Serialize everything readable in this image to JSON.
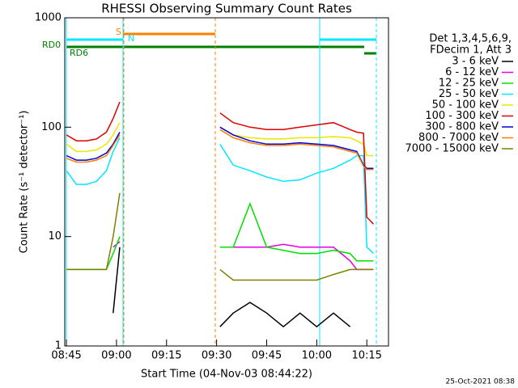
{
  "chart_data": {
    "type": "line",
    "title": "RHESSI Observing Summary Count Rates",
    "x_label": "Start Time (04-Nov-03 08:44:22)",
    "y_label": "Count Rate (s⁻¹ detector⁻¹)",
    "y_scale": "log",
    "legend_header": [
      "Det 1,3,4,5,6,9,",
      "FDecim 1, Att 3"
    ],
    "footer": "25-Oct-2021 08:38",
    "annotations": [
      "S",
      "N",
      "RD0",
      "RD6"
    ],
    "xlim": [
      524.5,
      621.5
    ],
    "ylim": [
      1,
      1000
    ],
    "xticks": [
      {
        "value": 525,
        "label": "08:45"
      },
      {
        "value": 540,
        "label": "09:00"
      },
      {
        "value": 555,
        "label": "09:15"
      },
      {
        "value": 570,
        "label": "09:30"
      },
      {
        "value": 585,
        "label": "09:45"
      },
      {
        "value": 600,
        "label": "10:00"
      },
      {
        "value": 615,
        "label": "10:15"
      }
    ],
    "yticks": [
      1,
      10,
      100,
      1000
    ],
    "x": [
      525,
      528,
      531,
      534,
      537,
      539,
      541,
      556,
      571,
      575,
      580,
      585,
      590,
      595,
      600,
      605,
      610,
      612,
      614,
      615,
      616,
      617
    ],
    "series": [
      {
        "name": "3 - 6 keV",
        "color": "#000000",
        "values": [
          null,
          null,
          null,
          null,
          null,
          2,
          8,
          null,
          1.5,
          2,
          2.5,
          2,
          1.5,
          2,
          1.5,
          2,
          1.5,
          null,
          null,
          null,
          null,
          null
        ]
      },
      {
        "name": "6 - 12 keV",
        "color": "#e000e0",
        "values": [
          null,
          null,
          null,
          null,
          null,
          8,
          9,
          null,
          8,
          8,
          8,
          8,
          8.5,
          8,
          8,
          8,
          6,
          5,
          5,
          5,
          5,
          5
        ]
      },
      {
        "name": "12 - 25 keV",
        "color": "#00e000",
        "values": [
          5,
          5,
          5,
          5,
          5,
          7,
          10,
          null,
          8,
          8,
          20,
          8,
          7.5,
          7,
          7,
          7.5,
          7,
          6,
          6,
          6,
          6,
          6
        ]
      },
      {
        "name": "25 - 50 keV",
        "color": "#00e8ff",
        "values": [
          40,
          30,
          30,
          32,
          40,
          60,
          80,
          null,
          70,
          45,
          40,
          35,
          32,
          33,
          38,
          42,
          50,
          55,
          55,
          8,
          7.5,
          7
        ]
      },
      {
        "name": "50 - 100 keV",
        "color": "#e8e800",
        "values": [
          70,
          60,
          60,
          62,
          70,
          85,
          110,
          null,
          100,
          85,
          80,
          78,
          78,
          80,
          80,
          82,
          80,
          75,
          70,
          55,
          55,
          55
        ]
      },
      {
        "name": "100 - 300 keV",
        "color": "#e00000",
        "values": [
          85,
          75,
          75,
          78,
          90,
          120,
          170,
          null,
          135,
          110,
          100,
          95,
          95,
          100,
          105,
          110,
          95,
          90,
          88,
          15,
          14,
          13
        ]
      },
      {
        "name": "300 - 800 keV",
        "color": "#0000e0",
        "values": [
          55,
          50,
          50,
          52,
          58,
          70,
          90,
          null,
          100,
          85,
          75,
          70,
          70,
          72,
          70,
          68,
          62,
          60,
          45,
          42,
          42,
          42
        ]
      },
      {
        "name": "800 - 7000 keV",
        "color": "#ff8000",
        "values": [
          52,
          48,
          48,
          50,
          55,
          68,
          85,
          null,
          95,
          80,
          72,
          68,
          68,
          70,
          68,
          66,
          60,
          58,
          44,
          41,
          41,
          41
        ]
      },
      {
        "name": "7000 - 15000 keV",
        "color": "#808000",
        "values": [
          5,
          5,
          5,
          5,
          5,
          10,
          25,
          null,
          5,
          4,
          4,
          4,
          4,
          4,
          4,
          4.5,
          5,
          5,
          5,
          5,
          5,
          5
        ]
      }
    ]
  }
}
